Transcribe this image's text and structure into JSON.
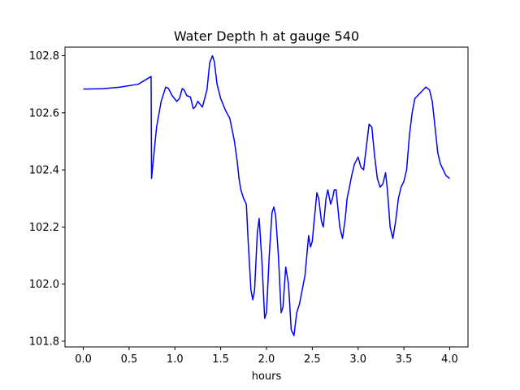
{
  "chart_data": {
    "type": "line",
    "title": "Water Depth h at gauge 540",
    "xlabel": "hours",
    "ylabel": "",
    "xlim": [
      -0.2,
      4.2
    ],
    "ylim": [
      101.78,
      102.83
    ],
    "xticks": [
      0.0,
      0.5,
      1.0,
      1.5,
      2.0,
      2.5,
      3.0,
      3.5,
      4.0
    ],
    "xtick_labels": [
      "0.0",
      "0.5",
      "1.0",
      "1.5",
      "2.0",
      "2.5",
      "3.0",
      "3.5",
      "4.0"
    ],
    "yticks": [
      101.8,
      102.0,
      102.2,
      102.4,
      102.6,
      102.8
    ],
    "ytick_labels": [
      "101.8",
      "102.0",
      "102.2",
      "102.4",
      "102.6",
      "102.8"
    ],
    "grid": false,
    "series": [
      {
        "color": "#0000ff",
        "x": [
          0.0,
          0.2,
          0.4,
          0.6,
          0.65,
          0.74,
          0.745,
          0.76,
          0.8,
          0.85,
          0.9,
          0.93,
          0.97,
          1.02,
          1.05,
          1.08,
          1.1,
          1.13,
          1.17,
          1.2,
          1.22,
          1.25,
          1.3,
          1.35,
          1.38,
          1.41,
          1.43,
          1.46,
          1.5,
          1.55,
          1.6,
          1.65,
          1.68,
          1.7,
          1.72,
          1.75,
          1.78,
          1.8,
          1.83,
          1.85,
          1.87,
          1.9,
          1.92,
          1.95,
          1.98,
          2.0,
          2.03,
          2.06,
          2.08,
          2.1,
          2.13,
          2.16,
          2.18,
          2.21,
          2.24,
          2.27,
          2.3,
          2.33,
          2.36,
          2.39,
          2.42,
          2.44,
          2.46,
          2.48,
          2.5,
          2.52,
          2.55,
          2.57,
          2.6,
          2.62,
          2.65,
          2.67,
          2.7,
          2.72,
          2.74,
          2.76,
          2.8,
          2.83,
          2.86,
          2.88,
          2.9,
          2.93,
          2.96,
          3.0,
          3.03,
          3.06,
          3.09,
          3.12,
          3.15,
          3.18,
          3.21,
          3.24,
          3.27,
          3.3,
          3.32,
          3.35,
          3.38,
          3.41,
          3.44,
          3.47,
          3.5,
          3.53,
          3.56,
          3.59,
          3.62,
          3.65,
          3.68,
          3.71,
          3.74,
          3.78,
          3.81,
          3.84,
          3.87,
          3.9,
          3.93,
          3.96,
          4.0
        ],
        "y": [
          102.683,
          102.684,
          102.69,
          102.7,
          102.71,
          102.727,
          102.37,
          102.42,
          102.55,
          102.64,
          102.69,
          102.685,
          102.66,
          102.64,
          102.65,
          102.685,
          102.68,
          102.66,
          102.655,
          102.615,
          102.62,
          102.64,
          102.62,
          102.68,
          102.775,
          102.8,
          102.78,
          102.7,
          102.65,
          102.61,
          102.58,
          102.5,
          102.43,
          102.37,
          102.33,
          102.3,
          102.28,
          102.15,
          101.98,
          101.945,
          101.98,
          102.18,
          102.23,
          102.08,
          101.88,
          101.9,
          102.1,
          102.25,
          102.27,
          102.24,
          102.1,
          101.9,
          101.92,
          102.06,
          102.0,
          101.84,
          101.82,
          101.9,
          101.93,
          101.98,
          102.03,
          102.1,
          102.17,
          102.13,
          102.15,
          102.22,
          102.32,
          102.3,
          102.22,
          102.2,
          102.3,
          102.33,
          102.28,
          102.3,
          102.33,
          102.33,
          102.2,
          102.16,
          102.23,
          102.3,
          102.33,
          102.38,
          102.42,
          102.445,
          102.41,
          102.4,
          102.48,
          102.56,
          102.55,
          102.45,
          102.37,
          102.34,
          102.35,
          102.39,
          102.33,
          102.2,
          102.16,
          102.22,
          102.3,
          102.34,
          102.36,
          102.4,
          102.52,
          102.6,
          102.65,
          102.66,
          102.67,
          102.68,
          102.69,
          102.68,
          102.64,
          102.55,
          102.46,
          102.42,
          102.4,
          102.38,
          102.37
        ]
      }
    ]
  }
}
